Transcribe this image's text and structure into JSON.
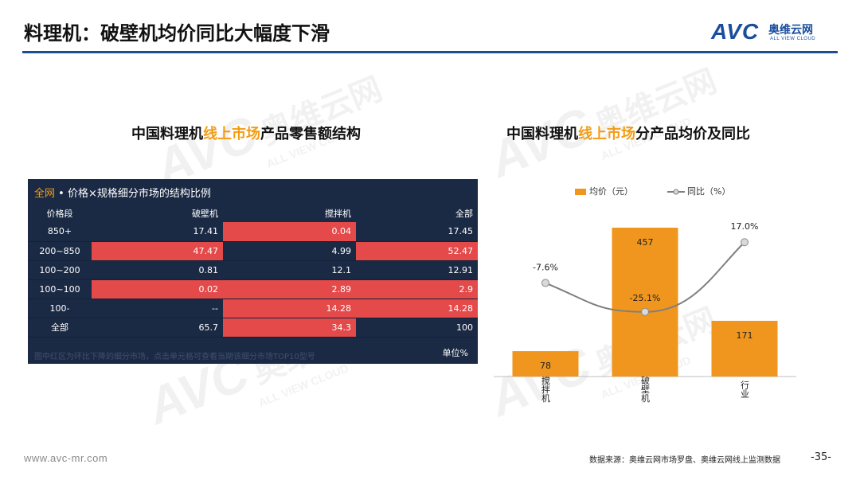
{
  "slide": {
    "title": "料理机：破壁机均价同比大幅度下滑",
    "page_number": "-35-",
    "footer_url": "www.avc-mr.com",
    "source": "数据来源：奥维云网市场罗盘、奥维云网线上监测数据"
  },
  "logo": {
    "avc": "AVC",
    "cn": "奥维云网",
    "en": "ALL VIEW CLOUD"
  },
  "left_section": {
    "title_prefix": "中国料理机",
    "title_highlight": "线上市场",
    "title_suffix": "产品零售额结构",
    "panel_title_highlight": "全网",
    "panel_title_rest": " • 价格×规格细分市场的结构比例",
    "headers": [
      "价格段",
      "破壁机",
      "搅拌机",
      "全部"
    ],
    "rows": [
      {
        "cells": [
          "850+",
          "17.41",
          "0.04",
          "17.45"
        ],
        "red": [
          false,
          false,
          true,
          false
        ]
      },
      {
        "cells": [
          "200~850",
          "47.47",
          "4.99",
          "52.47"
        ],
        "red": [
          false,
          true,
          false,
          true
        ]
      },
      {
        "cells": [
          "100~200",
          "0.81",
          "12.1",
          "12.91"
        ],
        "red": [
          false,
          false,
          false,
          false
        ]
      },
      {
        "cells": [
          "100~100",
          "0.02",
          "2.89",
          "2.9"
        ],
        "red": [
          false,
          true,
          true,
          true
        ]
      },
      {
        "cells": [
          "100-",
          "--",
          "14.28",
          "14.28"
        ],
        "red": [
          false,
          false,
          true,
          true
        ]
      },
      {
        "cells": [
          "全部",
          "65.7",
          "34.3",
          "100"
        ],
        "red": [
          false,
          false,
          true,
          false
        ]
      }
    ],
    "note": "图中红区为环比下降的细分市场，点击单元格可查看当期该细分市场TOP10型号",
    "unit": "单位%"
  },
  "right_section": {
    "title_prefix": "中国料理机",
    "title_highlight": "线上市场",
    "title_suffix": "分产品均价及同比"
  },
  "colors": {
    "accent_orange": "#f39c12",
    "bar_orange": "#f0961e",
    "line_gray": "#7f7f7f",
    "dark_navy": "#1b2a44",
    "red_cell": "#e44a4a",
    "rule_blue": "#1f4e8c"
  },
  "chart_data": {
    "type": "bar",
    "categories": [
      "搅拌机",
      "破壁机",
      "行业"
    ],
    "series": [
      {
        "name": "均价（元）",
        "type": "bar",
        "values": [
          78,
          457,
          171
        ],
        "labels": [
          "78",
          "457",
          "171"
        ]
      },
      {
        "name": "同比（%）",
        "type": "line",
        "values": [
          -7.6,
          -25.1,
          17.0
        ],
        "labels": [
          "-7.6%",
          "-25.1%",
          "17.0%"
        ]
      }
    ],
    "legend": "top",
    "grid": false
  }
}
